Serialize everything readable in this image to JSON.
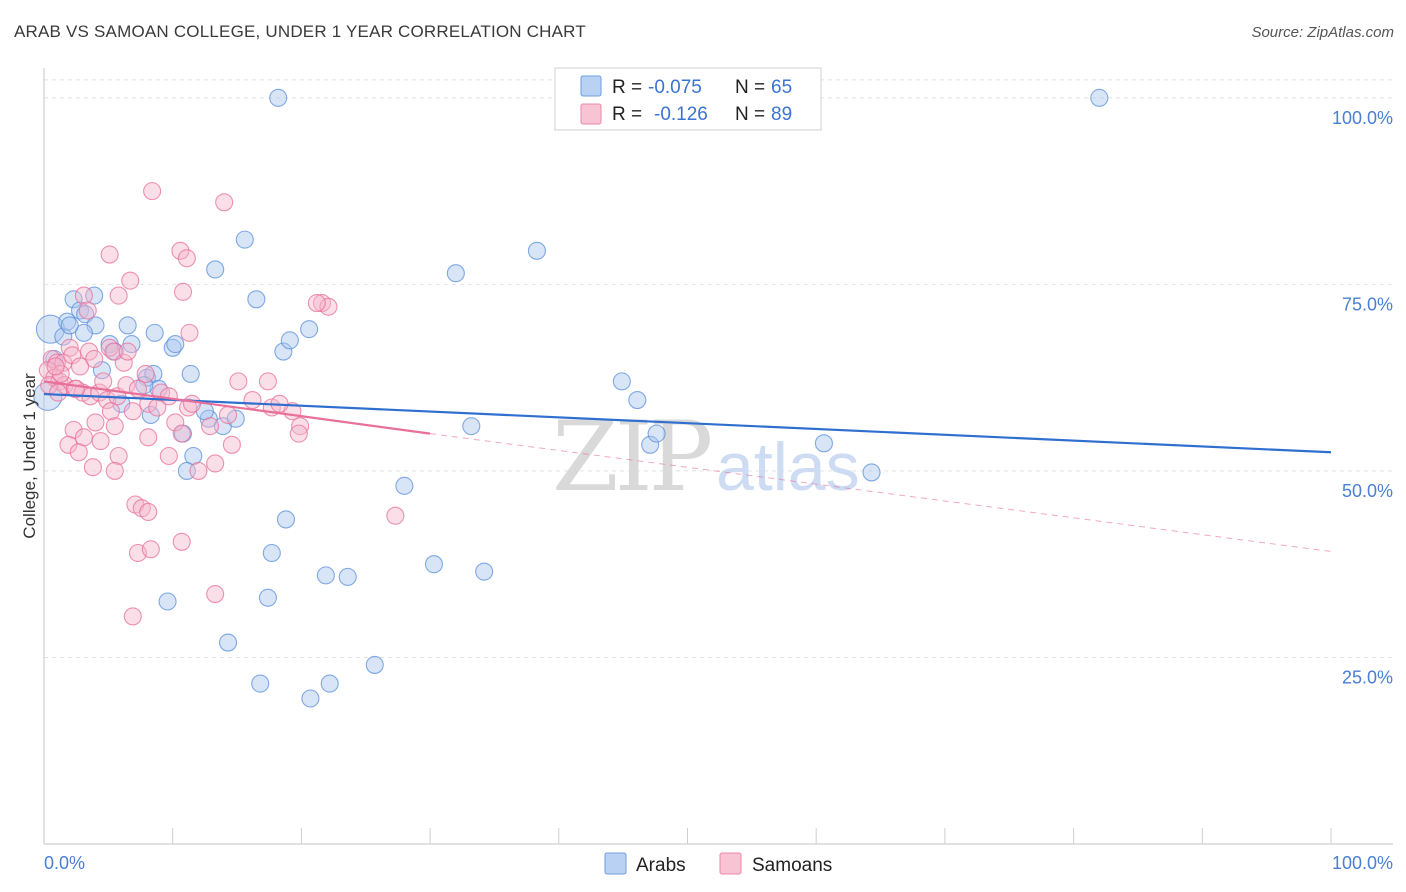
{
  "title": "ARAB VS SAMOAN COLLEGE, UNDER 1 YEAR CORRELATION CHART",
  "source": "Source: ZipAtlas.com",
  "watermark": {
    "zip": "ZIP",
    "atlas": "atlas"
  },
  "colors": {
    "arabs": "#5b8fdc",
    "arabs_fill": "#a9c6ee",
    "samoans": "#e8709a",
    "samoans_fill": "#f4b6cb",
    "arab_line": "#2f6fcf",
    "samoan_line": "#e8709a"
  },
  "legend": {
    "rows": [
      {
        "r_label": "R =",
        "r_value": "-0.075",
        "n_label": "N =",
        "n_value": "65"
      },
      {
        "r_label": "R =",
        "r_value": "-0.126",
        "n_label": "N =",
        "n_value": "89"
      }
    ]
  },
  "chart_data": {
    "type": "scatter",
    "title": "ARAB VS SAMOAN COLLEGE, UNDER 1 YEAR CORRELATION CHART",
    "xlabel": "",
    "ylabel": "College, Under 1 year",
    "xlim": [
      0,
      100
    ],
    "ylim": [
      0,
      104
    ],
    "x_tick_labels": [
      "0.0%",
      "100.0%"
    ],
    "y_ticks": [
      25,
      50,
      75,
      100
    ],
    "y_tick_labels": [
      "25.0%",
      "50.0%",
      "75.0%",
      "100.0%"
    ],
    "legend_labels": [
      "Arabs",
      "Samoans"
    ],
    "series": [
      {
        "name": "Arabs",
        "r": -0.075,
        "n": 65,
        "trend": {
          "x0": 0,
          "y0": 60.3,
          "x1": 100,
          "y1": 52.5
        },
        "points": [
          [
            18.2,
            100
          ],
          [
            82,
            100
          ],
          [
            0.5,
            69
          ],
          [
            0.3,
            60
          ],
          [
            1.5,
            68
          ],
          [
            1.8,
            70
          ],
          [
            2.3,
            73
          ],
          [
            2.8,
            71.5
          ],
          [
            3.2,
            71
          ],
          [
            3.9,
            73.5
          ],
          [
            4,
            69.5
          ],
          [
            5.1,
            67
          ],
          [
            6.5,
            69.5
          ],
          [
            6.8,
            67
          ],
          [
            8,
            62.5
          ],
          [
            8.5,
            63
          ],
          [
            8.6,
            68.5
          ],
          [
            8.9,
            61
          ],
          [
            10,
            66.5
          ],
          [
            10.2,
            67
          ],
          [
            11.4,
            63
          ],
          [
            12.8,
            57
          ],
          [
            13.3,
            77
          ],
          [
            13.9,
            56
          ],
          [
            14.9,
            57
          ],
          [
            15.6,
            81
          ],
          [
            16.5,
            73
          ],
          [
            18.6,
            66
          ],
          [
            18.8,
            43.5
          ],
          [
            19.1,
            67.5
          ],
          [
            20.6,
            69
          ],
          [
            17.7,
            39
          ],
          [
            17.4,
            33
          ],
          [
            16.8,
            21.5
          ],
          [
            21.9,
            36
          ],
          [
            22.2,
            21.5
          ],
          [
            23.6,
            35.8
          ],
          [
            25.7,
            24
          ],
          [
            28,
            48
          ],
          [
            30.3,
            37.5
          ],
          [
            32,
            76.5
          ],
          [
            33.2,
            56
          ],
          [
            34.2,
            36.5
          ],
          [
            38.3,
            79.5
          ],
          [
            44.9,
            62
          ],
          [
            46.1,
            59.5
          ],
          [
            47.1,
            53.5
          ],
          [
            47.6,
            55
          ],
          [
            60.6,
            53.7
          ],
          [
            64.3,
            49.8
          ],
          [
            11.1,
            50
          ],
          [
            9.6,
            32.5
          ],
          [
            14.3,
            27
          ],
          [
            20.7,
            19.5
          ],
          [
            3.1,
            68.5
          ],
          [
            6.0,
            59
          ],
          [
            10.8,
            55
          ],
          [
            11.6,
            52
          ],
          [
            7.8,
            61.5
          ],
          [
            5.5,
            66
          ],
          [
            2.0,
            69.5
          ],
          [
            8.3,
            57.5
          ],
          [
            12.5,
            58
          ],
          [
            0.8,
            65
          ],
          [
            4.5,
            63.5
          ]
        ]
      },
      {
        "name": "Samoans",
        "r": -0.126,
        "n": 89,
        "trend": {
          "x0": 0,
          "y0": 62.0,
          "x1": 30,
          "y1": 55.0,
          "dash_x1": 100,
          "dash_y1": 39.2
        },
        "points": [
          [
            8.4,
            87.5
          ],
          [
            14,
            86
          ],
          [
            5.1,
            79
          ],
          [
            10.6,
            79.5
          ],
          [
            11.1,
            78.5
          ],
          [
            6.7,
            75.5
          ],
          [
            10.8,
            74
          ],
          [
            3.1,
            73.5
          ],
          [
            5.8,
            73.5
          ],
          [
            3.4,
            71.5
          ],
          [
            21.6,
            72.5
          ],
          [
            22.1,
            72
          ],
          [
            11.3,
            68.5
          ],
          [
            2,
            66.5
          ],
          [
            3.5,
            66
          ],
          [
            3.9,
            65
          ],
          [
            0.6,
            65
          ],
          [
            1,
            64.5
          ],
          [
            1.5,
            64.5
          ],
          [
            2.2,
            65.5
          ],
          [
            5.1,
            66.5
          ],
          [
            5.4,
            66
          ],
          [
            6.2,
            64.5
          ],
          [
            6.5,
            66
          ],
          [
            0.3,
            63.5
          ],
          [
            0.8,
            62.5
          ],
          [
            1.2,
            62
          ],
          [
            1.6,
            61.5
          ],
          [
            2.4,
            61
          ],
          [
            3,
            60.5
          ],
          [
            3.6,
            60
          ],
          [
            4.3,
            60.5
          ],
          [
            4.9,
            59.5
          ],
          [
            5.7,
            60
          ],
          [
            6.4,
            61.5
          ],
          [
            7.3,
            61
          ],
          [
            8.1,
            59
          ],
          [
            8.8,
            58.5
          ],
          [
            4,
            56.5
          ],
          [
            5.5,
            56
          ],
          [
            2.3,
            55.5
          ],
          [
            3.1,
            54.5
          ],
          [
            4.4,
            54
          ],
          [
            1.9,
            53.5
          ],
          [
            2.7,
            52.5
          ],
          [
            5.8,
            52
          ],
          [
            8.1,
            54.5
          ],
          [
            9.7,
            52
          ],
          [
            10.2,
            56.5
          ],
          [
            10.7,
            55
          ],
          [
            11.2,
            58.5
          ],
          [
            12,
            50
          ],
          [
            13.3,
            51
          ],
          [
            14.3,
            57.5
          ],
          [
            15.1,
            62
          ],
          [
            17.7,
            58.5
          ],
          [
            19.3,
            58
          ],
          [
            19.9,
            56
          ],
          [
            19.8,
            55
          ],
          [
            18.3,
            59
          ],
          [
            17.4,
            62
          ],
          [
            21.2,
            72.5
          ],
          [
            3.8,
            50.5
          ],
          [
            5.5,
            50
          ],
          [
            7.1,
            45.5
          ],
          [
            7.6,
            45
          ],
          [
            8.1,
            44.5
          ],
          [
            7.3,
            39
          ],
          [
            8.3,
            39.5
          ],
          [
            10.7,
            40.5
          ],
          [
            6.9,
            30.5
          ],
          [
            13.3,
            33.5
          ],
          [
            27.3,
            44
          ],
          [
            0.4,
            61.5
          ],
          [
            1.3,
            63
          ],
          [
            2.8,
            64
          ],
          [
            4.6,
            62
          ],
          [
            5.2,
            58
          ],
          [
            6.9,
            58
          ],
          [
            7.9,
            63
          ],
          [
            9.1,
            60.5
          ],
          [
            9.7,
            60
          ],
          [
            11.5,
            59
          ],
          [
            12.9,
            56
          ],
          [
            14.6,
            53.5
          ],
          [
            16.2,
            59.5
          ],
          [
            1.1,
            60.5
          ],
          [
            2.5,
            61
          ],
          [
            0.9,
            64
          ]
        ]
      }
    ]
  }
}
